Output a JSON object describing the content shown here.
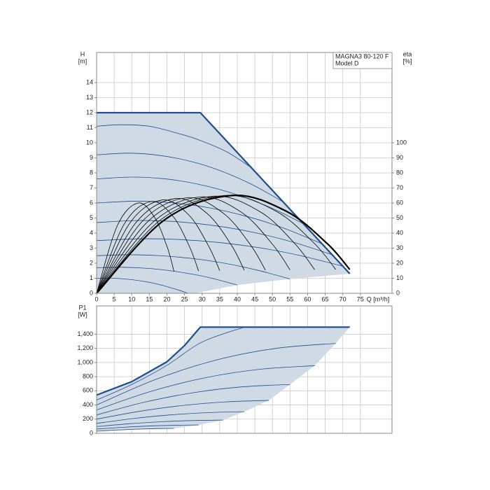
{
  "chart_data": [
    {
      "type": "line",
      "y_label": "H",
      "y_unit": "[m]",
      "y2_label": "eta",
      "y2_unit": "[%]",
      "x_label": "Q [m³/h]",
      "annotation": [
        "MAGNA3 80-120 F",
        "Model D"
      ],
      "xlim": [
        0,
        84
      ],
      "xticks": [
        0,
        5,
        10,
        15,
        20,
        25,
        30,
        35,
        40,
        45,
        50,
        55,
        60,
        65,
        70,
        75
      ],
      "ylim": [
        0,
        16
      ],
      "yticks": [
        0,
        1,
        2,
        3,
        4,
        5,
        6,
        7,
        8,
        9,
        10,
        11,
        12,
        13,
        14
      ],
      "y2lim": [
        0,
        160
      ],
      "y2ticks": [
        0,
        10,
        20,
        30,
        40,
        50,
        60,
        70,
        80,
        90,
        100
      ],
      "grid": true,
      "smooth": true,
      "area_color": "#cfdae5",
      "band": {
        "x": [
          0,
          28,
          40,
          55,
          72
        ],
        "values": [
          0,
          0,
          0.55,
          0.95,
          1.3
        ]
      },
      "series": [
        {
          "color": "#1f4e8c",
          "bold": true,
          "smooth": false,
          "x": [
            0,
            29.5,
            72
          ],
          "values": [
            12,
            12,
            1.3
          ]
        },
        {
          "color": "#1f4e8c",
          "x": [
            0,
            7,
            15,
            22,
            29,
            37,
            44
          ],
          "values": [
            11.1,
            11.2,
            11.1,
            10.7,
            10.2,
            9.4,
            8.35
          ]
        },
        {
          "color": "#1f4e8c",
          "x": [
            0,
            9,
            18,
            27,
            35,
            44,
            53
          ],
          "values": [
            9.2,
            9.31,
            9.16,
            8.75,
            8.16,
            7.25,
            6.08
          ]
        },
        {
          "color": "#1f4e8c",
          "x": [
            0,
            10,
            20,
            30,
            40,
            50,
            59
          ],
          "values": [
            7.6,
            7.72,
            7.59,
            7.19,
            6.54,
            5.64,
            4.6
          ]
        },
        {
          "color": "#1f4e8c",
          "x": [
            0,
            11,
            21,
            32,
            43,
            53,
            64
          ],
          "values": [
            6.0,
            6.12,
            6.02,
            5.68,
            5.09,
            4.35,
            3.3
          ]
        },
        {
          "color": "#1f4e8c",
          "x": [
            0,
            11,
            22,
            34,
            45,
            56,
            67
          ],
          "values": [
            4.7,
            4.83,
            4.77,
            4.48,
            4.03,
            3.39,
            2.56
          ]
        },
        {
          "color": "#1f4e8c",
          "x": [
            0,
            12,
            23,
            35,
            47,
            58,
            70
          ],
          "values": [
            3.5,
            3.62,
            3.58,
            3.37,
            3.0,
            2.5,
            1.8
          ]
        },
        {
          "color": "#1f4e8c",
          "x": [
            0,
            9,
            18,
            28,
            37,
            46,
            55
          ],
          "values": [
            2.5,
            2.56,
            2.5,
            2.29,
            1.97,
            1.52,
            0.95
          ]
        },
        {
          "color": "#1f4e8c",
          "x": [
            0,
            7,
            13,
            20,
            27,
            33,
            40
          ],
          "values": [
            1.7,
            1.73,
            1.68,
            1.53,
            1.28,
            0.99,
            0.55
          ]
        },
        {
          "color": "#1f4e8c",
          "x": [
            0,
            4,
            9,
            13,
            17,
            22,
            26
          ],
          "values": [
            1.0,
            1.01,
            0.93,
            0.81,
            0.63,
            0.31,
            0
          ]
        },
        {
          "color": "#000000",
          "axis": "y2",
          "x": [
            0,
            5.9,
            11.8,
            16.5,
            20.1,
            22
          ],
          "values": [
            0,
            45,
            60,
            50.4,
            30.6,
            14.6
          ]
        },
        {
          "color": "#000000",
          "axis": "y2",
          "x": [
            0,
            7.8,
            15.5,
            21.7,
            26.4,
            29
          ],
          "values": [
            0,
            45.8,
            61,
            51.2,
            31.1,
            14.8
          ]
        },
        {
          "color": "#000000",
          "axis": "y2",
          "x": [
            0,
            9.4,
            18.7,
            26.2,
            31.8,
            35
          ],
          "values": [
            0,
            46.5,
            62,
            52.1,
            31.6,
            15.1
          ]
        },
        {
          "color": "#000000",
          "axis": "y2",
          "x": [
            0,
            11.3,
            22.5,
            31.5,
            38.3,
            42
          ],
          "values": [
            0,
            47.3,
            63,
            52.9,
            32.1,
            15.3
          ]
        },
        {
          "color": "#000000",
          "axis": "y2",
          "x": [
            0,
            12.9,
            25.7,
            36,
            43.7,
            48
          ],
          "values": [
            0,
            47.6,
            63.5,
            53.3,
            32.4,
            15.4
          ]
        },
        {
          "color": "#000000",
          "axis": "y2",
          "x": [
            0,
            14.7,
            29.4,
            41.2,
            50,
            55
          ],
          "values": [
            0,
            48,
            64,
            53.8,
            32.6,
            15.6
          ]
        },
        {
          "color": "#000000",
          "axis": "y2",
          "x": [
            0,
            16.6,
            33.2,
            46.5,
            56.4,
            62
          ],
          "values": [
            0,
            48.4,
            64.5,
            54.2,
            32.9,
            15.7
          ]
        },
        {
          "color": "#000000",
          "axis": "y2",
          "x": [
            0,
            18.2,
            36.4,
            51,
            61.9,
            68
          ],
          "values": [
            0,
            48.8,
            65,
            54.6,
            33.2,
            15.8
          ]
        },
        {
          "color": "#000000",
          "axis": "y2",
          "bold": true,
          "x": [
            0,
            19.3,
            38.5,
            53.9,
            65.5,
            72
          ],
          "values": [
            0,
            48.8,
            65,
            54.6,
            33.2,
            15.8
          ]
        }
      ]
    },
    {
      "type": "line",
      "y_label": "P1",
      "y_unit": "[W]",
      "xlim": [
        0,
        84
      ],
      "ylim": [
        0,
        1800
      ],
      "yticks": [
        0,
        200,
        400,
        600,
        800,
        {
          "value": 1000,
          "label": "1,000"
        },
        {
          "value": 1200,
          "label": "1,200"
        },
        {
          "value": 1400,
          "label": "1,400"
        }
      ],
      "grid": true,
      "smooth": true,
      "area_color": "#cfdae5",
      "band": {
        "x": [
          0,
          22,
          29,
          36,
          42,
          49,
          55,
          62,
          68,
          72
        ],
        "values": [
          30,
          69,
          118,
          187,
          305,
          465,
          690,
          955,
          1270,
          1500
        ]
      },
      "series": [
        {
          "color": "#1f4e8c",
          "bold": true,
          "smooth": false,
          "x": [
            0,
            10,
            20,
            25,
            29.5,
            72
          ],
          "values": [
            540,
            730,
            1010,
            1240,
            1500,
            1500
          ]
        },
        {
          "color": "#1f4e8c",
          "x": [
            0,
            10,
            20,
            30,
            42
          ],
          "values": [
            470,
            690,
            960,
            1290,
            1500
          ]
        },
        {
          "color": "#1f4e8c",
          "x": [
            0,
            17,
            34,
            51,
            68
          ],
          "values": [
            400,
            765,
            1035,
            1200,
            1270
          ]
        },
        {
          "color": "#1f4e8c",
          "x": [
            0,
            15.5,
            31,
            46.5,
            62
          ],
          "values": [
            330,
            593,
            786,
            905,
            955
          ]
        },
        {
          "color": "#1f4e8c",
          "x": [
            0,
            13.75,
            27.5,
            41.25,
            55
          ],
          "values": [
            260,
            441,
            574,
            656,
            690
          ]
        },
        {
          "color": "#1f4e8c",
          "x": [
            0,
            12.25,
            24.5,
            36.75,
            49
          ],
          "values": [
            200,
            311,
            393,
            444,
            465
          ]
        },
        {
          "color": "#1f4e8c",
          "x": [
            0,
            10.5,
            21,
            31.5,
            42
          ],
          "values": [
            140,
            209,
            260,
            292,
            305
          ]
        },
        {
          "color": "#1f4e8c",
          "x": [
            0,
            9,
            18,
            27,
            36
          ],
          "values": [
            95,
            134,
            162,
            180,
            187
          ]
        },
        {
          "color": "#1f4e8c",
          "x": [
            0,
            7.25,
            14.5,
            21.75,
            29
          ],
          "values": [
            60,
            84,
            102,
            113,
            118
          ]
        },
        {
          "color": "#1f4e8c",
          "x": [
            0,
            5.5,
            11,
            16.5,
            22
          ],
          "values": [
            30,
            46,
            58,
            66,
            69
          ]
        }
      ]
    }
  ]
}
